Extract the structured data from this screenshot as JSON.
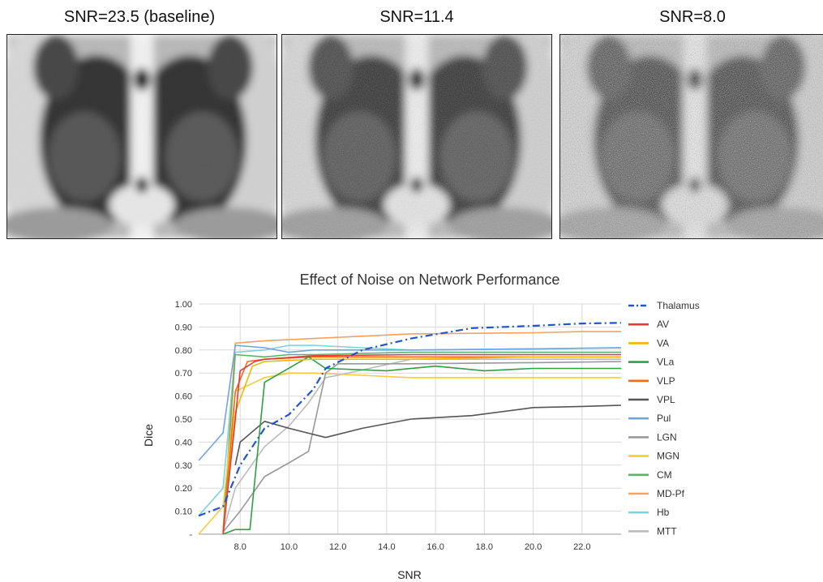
{
  "images": [
    {
      "title": "SNR=23.5 (baseline)",
      "noise": 0.02
    },
    {
      "title": "SNR=11.4",
      "noise": 0.12
    },
    {
      "title": "SNR=8.0",
      "noise": 0.26
    }
  ],
  "chart_data": {
    "type": "line",
    "title": "Effect of Noise on Network Performance",
    "xlabel": "SNR",
    "ylabel": "Dice",
    "xlim": [
      6.3,
      23.6
    ],
    "ylim": [
      0,
      1
    ],
    "x_ticks": [
      "8.0",
      "10.0",
      "12.0",
      "14.0",
      "16.0",
      "18.0",
      "20.0",
      "22.0"
    ],
    "x_tick_values": [
      8,
      10,
      12,
      14,
      16,
      18,
      20,
      22
    ],
    "y_ticks": [
      "-",
      "0.10",
      "0.20",
      "0.30",
      "0.40",
      "0.50",
      "0.60",
      "0.70",
      "0.80",
      "0.90",
      "1.00"
    ],
    "y_tick_values": [
      0,
      0.1,
      0.2,
      0.3,
      0.4,
      0.5,
      0.6,
      0.7,
      0.8,
      0.9,
      1.0
    ],
    "grid": true,
    "legend_position": "right",
    "series": [
      {
        "name": "Thalamus",
        "color": "#2255cc",
        "dash": "dashdot",
        "points": [
          [
            6.3,
            0.08
          ],
          [
            7.3,
            0.12
          ],
          [
            8.0,
            0.3
          ],
          [
            9.0,
            0.46
          ],
          [
            10.0,
            0.52
          ],
          [
            11.0,
            0.63
          ],
          [
            11.5,
            0.72
          ],
          [
            13.0,
            0.8
          ],
          [
            15.0,
            0.85
          ],
          [
            17.5,
            0.895
          ],
          [
            20.0,
            0.905
          ],
          [
            22.0,
            0.915
          ],
          [
            23.6,
            0.918
          ]
        ]
      },
      {
        "name": "AV",
        "color": "#e03c31",
        "points": [
          [
            7.3,
            0.0
          ],
          [
            7.8,
            0.5
          ],
          [
            8.0,
            0.71
          ],
          [
            8.6,
            0.75
          ],
          [
            9.0,
            0.76
          ],
          [
            11.0,
            0.775
          ],
          [
            15.0,
            0.78
          ],
          [
            20.0,
            0.78
          ],
          [
            23.6,
            0.78
          ]
        ]
      },
      {
        "name": "VA",
        "color": "#f2b705",
        "points": [
          [
            7.3,
            0.0
          ],
          [
            7.8,
            0.53
          ],
          [
            8.5,
            0.73
          ],
          [
            9.0,
            0.75
          ],
          [
            11.0,
            0.76
          ],
          [
            15.0,
            0.76
          ],
          [
            20.0,
            0.77
          ],
          [
            23.6,
            0.77
          ]
        ]
      },
      {
        "name": "VLa",
        "color": "#2ea043",
        "points": [
          [
            7.3,
            0.0
          ],
          [
            7.8,
            0.02
          ],
          [
            8.4,
            0.02
          ],
          [
            9.0,
            0.66
          ],
          [
            10.8,
            0.77
          ],
          [
            11.5,
            0.72
          ],
          [
            14.0,
            0.71
          ],
          [
            16.0,
            0.73
          ],
          [
            18.0,
            0.71
          ],
          [
            20.0,
            0.72
          ],
          [
            22.0,
            0.72
          ],
          [
            23.6,
            0.72
          ]
        ]
      },
      {
        "name": "VLP",
        "color": "#f26b1d",
        "points": [
          [
            7.3,
            0.0
          ],
          [
            7.8,
            0.62
          ],
          [
            8.3,
            0.75
          ],
          [
            9.0,
            0.76
          ],
          [
            11.0,
            0.77
          ],
          [
            15.0,
            0.77
          ],
          [
            20.0,
            0.77
          ],
          [
            23.6,
            0.77
          ]
        ]
      },
      {
        "name": "VPL",
        "color": "#555555",
        "points": [
          [
            7.8,
            0.3
          ],
          [
            8.0,
            0.4
          ],
          [
            9.0,
            0.49
          ],
          [
            10.0,
            0.46
          ],
          [
            11.5,
            0.42
          ],
          [
            13.0,
            0.46
          ],
          [
            15.0,
            0.5
          ],
          [
            17.5,
            0.515
          ],
          [
            20.0,
            0.55
          ],
          [
            22.0,
            0.555
          ],
          [
            23.6,
            0.56
          ]
        ]
      },
      {
        "name": "Pul",
        "color": "#6fa4e0",
        "points": [
          [
            6.3,
            0.32
          ],
          [
            7.3,
            0.44
          ],
          [
            7.8,
            0.82
          ],
          [
            9.0,
            0.81
          ],
          [
            10.0,
            0.79
          ],
          [
            11.0,
            0.8
          ],
          [
            15.0,
            0.8
          ],
          [
            20.0,
            0.805
          ],
          [
            23.6,
            0.81
          ]
        ]
      },
      {
        "name": "LGN",
        "color": "#999999",
        "points": [
          [
            7.3,
            0.01
          ],
          [
            8.0,
            0.1
          ],
          [
            9.0,
            0.25
          ],
          [
            10.0,
            0.31
          ],
          [
            10.8,
            0.36
          ],
          [
            11.5,
            0.7
          ],
          [
            12.0,
            0.74
          ],
          [
            15.0,
            0.74
          ],
          [
            20.0,
            0.745
          ],
          [
            23.6,
            0.75
          ]
        ]
      },
      {
        "name": "MGN",
        "color": "#f5cc3a",
        "points": [
          [
            6.3,
            0.0
          ],
          [
            7.3,
            0.12
          ],
          [
            7.8,
            0.62
          ],
          [
            9.0,
            0.68
          ],
          [
            10.0,
            0.7
          ],
          [
            11.0,
            0.7
          ],
          [
            13.0,
            0.69
          ],
          [
            15.0,
            0.68
          ],
          [
            20.0,
            0.68
          ],
          [
            23.6,
            0.68
          ]
        ]
      },
      {
        "name": "CM",
        "color": "#5bb36a",
        "points": [
          [
            7.3,
            0.01
          ],
          [
            7.8,
            0.78
          ],
          [
            9.0,
            0.77
          ],
          [
            10.0,
            0.78
          ],
          [
            11.0,
            0.78
          ],
          [
            15.0,
            0.79
          ],
          [
            20.0,
            0.79
          ],
          [
            23.6,
            0.79
          ]
        ]
      },
      {
        "name": "MD-Pf",
        "color": "#f4a261",
        "points": [
          [
            7.3,
            0.01
          ],
          [
            7.8,
            0.83
          ],
          [
            9.0,
            0.84
          ],
          [
            11.0,
            0.85
          ],
          [
            15.0,
            0.87
          ],
          [
            20.0,
            0.875
          ],
          [
            22.0,
            0.88
          ],
          [
            23.6,
            0.88
          ]
        ]
      },
      {
        "name": "Hb",
        "color": "#7ed3e0",
        "points": [
          [
            6.3,
            0.08
          ],
          [
            7.3,
            0.2
          ],
          [
            7.8,
            0.79
          ],
          [
            9.0,
            0.8
          ],
          [
            10.0,
            0.82
          ],
          [
            11.0,
            0.82
          ],
          [
            13.0,
            0.81
          ],
          [
            15.0,
            0.8
          ],
          [
            20.0,
            0.805
          ],
          [
            23.6,
            0.81
          ]
        ]
      },
      {
        "name": "MTT",
        "color": "#bbbbbb",
        "points": [
          [
            7.3,
            0.01
          ],
          [
            7.8,
            0.2
          ],
          [
            9.0,
            0.38
          ],
          [
            10.0,
            0.47
          ],
          [
            10.8,
            0.57
          ],
          [
            11.5,
            0.68
          ],
          [
            12.0,
            0.69
          ],
          [
            15.0,
            0.76
          ],
          [
            20.0,
            0.76
          ],
          [
            23.6,
            0.76
          ]
        ]
      }
    ]
  }
}
